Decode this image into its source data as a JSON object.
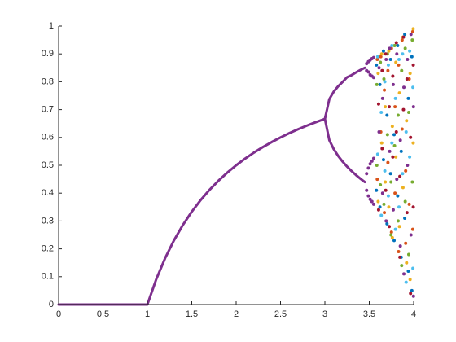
{
  "chart_data": {
    "type": "scatter",
    "xlim": [
      0,
      4
    ],
    "ylim": [
      0,
      1
    ],
    "xticks": [
      0,
      0.5,
      1,
      1.5,
      2,
      2.5,
      3,
      3.5,
      4
    ],
    "yticks": [
      0,
      0.1,
      0.2,
      0.3,
      0.4,
      0.5,
      0.6,
      0.7,
      0.8,
      0.9,
      1
    ],
    "grid": false,
    "series": [
      {
        "color": "#7e2f8e",
        "mode": "line",
        "x": [
          0,
          0.5,
          1,
          1.1,
          1.2,
          1.3,
          1.4,
          1.5,
          1.6,
          1.7,
          1.8,
          1.9,
          2,
          2.1,
          2.2,
          2.3,
          2.4,
          2.5,
          2.6,
          2.7,
          2.8,
          2.9,
          3
        ],
        "values": [
          0,
          0,
          0,
          0.0909,
          0.1667,
          0.2308,
          0.2857,
          0.3333,
          0.375,
          0.4118,
          0.4444,
          0.4737,
          0.5,
          0.5238,
          0.5455,
          0.5652,
          0.5833,
          0.6,
          0.6154,
          0.6296,
          0.6429,
          0.6552,
          0.6667
        ]
      },
      {
        "color": "#7e2f8e",
        "mode": "line",
        "x": [
          3,
          3.05,
          3.1,
          3.15,
          3.2,
          3.25,
          3.3,
          3.35,
          3.4,
          3.45
        ],
        "values": [
          0.6667,
          0.7377,
          0.7646,
          0.784,
          0.7995,
          0.8163,
          0.8236,
          0.8334,
          0.8421,
          0.85
        ]
      },
      {
        "color": "#7e2f8e",
        "mode": "line",
        "x": [
          3,
          3.05,
          3.1,
          3.15,
          3.2,
          3.25,
          3.3,
          3.35,
          3.4,
          3.45
        ],
        "values": [
          0.6667,
          0.5902,
          0.558,
          0.5335,
          0.513,
          0.4953,
          0.4794,
          0.4651,
          0.452,
          0.4398
        ]
      },
      {
        "color": "#7e2f8e",
        "mode": "markers",
        "x": [
          3.47,
          3.49,
          3.51,
          3.53,
          3.55,
          3.47,
          3.49,
          3.51,
          3.53,
          3.55,
          3.47,
          3.49,
          3.51,
          3.53,
          3.55,
          3.47,
          3.49,
          3.51,
          3.53,
          3.55
        ],
        "values": [
          0.865,
          0.872,
          0.878,
          0.883,
          0.887,
          0.84,
          0.835,
          0.825,
          0.82,
          0.815,
          0.47,
          0.49,
          0.505,
          0.515,
          0.525,
          0.41,
          0.39,
          0.378,
          0.37,
          0.36
        ]
      },
      {
        "color": "#0072bd",
        "mode": "markers",
        "x": [
          3.58,
          3.58,
          3.62,
          3.62,
          3.66,
          3.66,
          3.7,
          3.7,
          3.74,
          3.74,
          3.78,
          3.78,
          3.82,
          3.82,
          3.86,
          3.86,
          3.9,
          3.9,
          3.94,
          3.94,
          3.98,
          3.98
        ],
        "values": [
          0.41,
          0.86,
          0.35,
          0.79,
          0.52,
          0.91,
          0.29,
          0.68,
          0.47,
          0.88,
          0.23,
          0.61,
          0.39,
          0.93,
          0.17,
          0.55,
          0.31,
          0.97,
          0.12,
          0.74,
          0.05,
          0.89
        ]
      },
      {
        "color": "#d95319",
        "mode": "markers",
        "x": [
          3.59,
          3.59,
          3.63,
          3.63,
          3.67,
          3.67,
          3.71,
          3.71,
          3.75,
          3.75,
          3.79,
          3.79,
          3.83,
          3.83,
          3.87,
          3.87,
          3.91,
          3.91,
          3.95,
          3.95,
          3.99,
          3.99
        ],
        "values": [
          0.88,
          0.45,
          0.62,
          0.89,
          0.33,
          0.77,
          0.84,
          0.51,
          0.26,
          0.92,
          0.71,
          0.4,
          0.19,
          0.86,
          0.63,
          0.95,
          0.22,
          0.48,
          0.81,
          0.36,
          0.98,
          0.27
        ]
      },
      {
        "color": "#edb120",
        "mode": "markers",
        "x": [
          3.6,
          3.6,
          3.64,
          3.64,
          3.68,
          3.68,
          3.72,
          3.72,
          3.76,
          3.76,
          3.8,
          3.8,
          3.84,
          3.84,
          3.88,
          3.88,
          3.92,
          3.92,
          3.96,
          3.96,
          3.995,
          3.995
        ],
        "values": [
          0.37,
          0.83,
          0.58,
          0.9,
          0.44,
          0.71,
          0.91,
          0.35,
          0.64,
          0.24,
          0.87,
          0.53,
          0.28,
          0.76,
          0.96,
          0.42,
          0.15,
          0.66,
          0.09,
          0.83,
          0.58,
          0.99
        ]
      },
      {
        "color": "#7e2f8e",
        "mode": "markers",
        "x": [
          3.61,
          3.61,
          3.65,
          3.65,
          3.69,
          3.69,
          3.73,
          3.73,
          3.77,
          3.77,
          3.81,
          3.81,
          3.85,
          3.85,
          3.89,
          3.89,
          3.93,
          3.93,
          3.97,
          3.97,
          3.998,
          3.998
        ],
        "values": [
          0.62,
          0.85,
          0.4,
          0.74,
          0.88,
          0.3,
          0.55,
          0.92,
          0.34,
          0.79,
          0.9,
          0.45,
          0.21,
          0.59,
          0.78,
          0.11,
          0.5,
          0.88,
          0.25,
          0.97,
          0.03,
          0.71
        ]
      },
      {
        "color": "#77ac30",
        "mode": "markers",
        "x": [
          3.585,
          3.585,
          3.625,
          3.625,
          3.665,
          3.665,
          3.705,
          3.705,
          3.745,
          3.745,
          3.785,
          3.785,
          3.825,
          3.825,
          3.865,
          3.865,
          3.905,
          3.905,
          3.945,
          3.945,
          3.985,
          3.985
        ],
        "values": [
          0.79,
          0.5,
          0.87,
          0.43,
          0.36,
          0.81,
          0.61,
          0.9,
          0.44,
          0.25,
          0.57,
          0.93,
          0.68,
          0.3,
          0.14,
          0.84,
          0.92,
          0.37,
          0.69,
          0.18,
          0.44,
          0.95
        ]
      },
      {
        "color": "#4dbeee",
        "mode": "markers",
        "x": [
          3.595,
          3.595,
          3.635,
          3.635,
          3.675,
          3.675,
          3.715,
          3.715,
          3.755,
          3.755,
          3.795,
          3.795,
          3.835,
          3.835,
          3.875,
          3.875,
          3.915,
          3.915,
          3.955,
          3.955,
          3.992,
          3.992
        ],
        "values": [
          0.54,
          0.89,
          0.32,
          0.69,
          0.8,
          0.48,
          0.39,
          0.86,
          0.93,
          0.58,
          0.27,
          0.74,
          0.88,
          0.35,
          0.47,
          0.9,
          0.62,
          0.08,
          0.91,
          0.53,
          0.13,
          0.78
        ]
      },
      {
        "color": "#a2142f",
        "mode": "markers",
        "x": [
          3.605,
          3.605,
          3.645,
          3.645,
          3.685,
          3.685,
          3.725,
          3.725,
          3.765,
          3.765,
          3.805,
          3.805,
          3.845,
          3.845,
          3.885,
          3.885,
          3.925,
          3.925,
          3.965,
          3.965,
          3.996,
          3.996
        ],
        "values": [
          0.34,
          0.72,
          0.84,
          0.56,
          0.9,
          0.41,
          0.71,
          0.28,
          0.53,
          0.82,
          0.62,
          0.94,
          0.46,
          0.17,
          0.7,
          0.96,
          0.33,
          0.81,
          0.04,
          0.6,
          0.86,
          0.35
        ]
      }
    ]
  }
}
